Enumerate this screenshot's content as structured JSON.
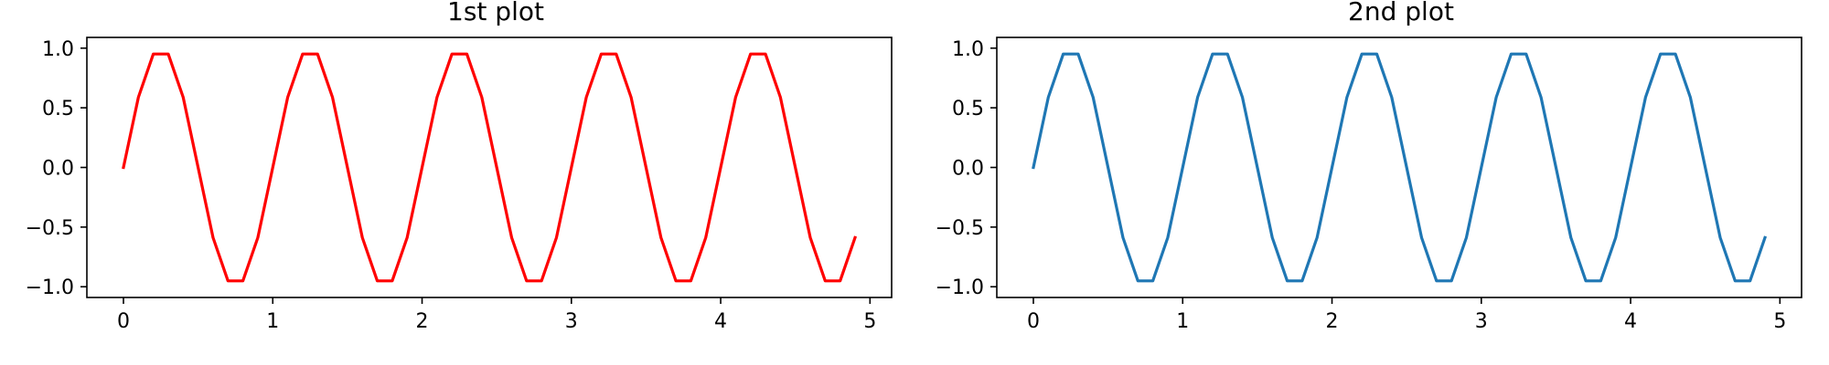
{
  "chart_data": [
    {
      "type": "line",
      "title": "1st plot",
      "xlabel": "",
      "ylabel": "",
      "xlim": [
        -0.245,
        5.145
      ],
      "ylim": [
        -1.09,
        1.09
      ],
      "xticks": [
        0,
        1,
        2,
        3,
        4,
        5
      ],
      "xtick_labels": [
        "0",
        "1",
        "2",
        "3",
        "4",
        "5"
      ],
      "yticks": [
        -1.0,
        -0.5,
        0.0,
        0.5,
        1.0
      ],
      "ytick_labels": [
        "−1.0",
        "−0.5",
        "0.0",
        "0.5",
        "1.0"
      ],
      "grid": false,
      "series": [
        {
          "color": "#ff0000",
          "x": [
            0.0,
            0.1,
            0.2,
            0.3,
            0.4,
            0.5,
            0.6,
            0.7,
            0.8,
            0.9,
            1.0,
            1.1,
            1.2,
            1.3,
            1.4,
            1.5,
            1.6,
            1.7,
            1.8,
            1.9,
            2.0,
            2.1,
            2.2,
            2.3,
            2.4,
            2.5,
            2.6,
            2.7,
            2.8,
            2.9,
            3.0,
            3.1,
            3.2,
            3.3,
            3.4,
            3.5,
            3.6,
            3.7,
            3.8,
            3.9,
            4.0,
            4.1,
            4.2,
            4.3,
            4.4,
            4.5,
            4.6,
            4.7,
            4.8,
            4.9
          ],
          "y": [
            0.0,
            0.588,
            0.951,
            0.951,
            0.588,
            0.0,
            -0.588,
            -0.951,
            -0.951,
            -0.588,
            0.0,
            0.588,
            0.951,
            0.951,
            0.588,
            0.0,
            -0.588,
            -0.951,
            -0.951,
            -0.588,
            0.0,
            0.588,
            0.951,
            0.951,
            0.588,
            0.0,
            -0.588,
            -0.951,
            -0.951,
            -0.588,
            0.0,
            0.588,
            0.951,
            0.951,
            0.588,
            0.0,
            -0.588,
            -0.951,
            -0.951,
            -0.588,
            0.0,
            0.588,
            0.951,
            0.951,
            0.588,
            0.0,
            -0.588,
            -0.951,
            -0.951,
            -0.588
          ]
        }
      ]
    },
    {
      "type": "line",
      "title": "2nd plot",
      "xlabel": "",
      "ylabel": "",
      "xlim": [
        -0.245,
        5.145
      ],
      "ylim": [
        -1.09,
        1.09
      ],
      "xticks": [
        0,
        1,
        2,
        3,
        4,
        5
      ],
      "xtick_labels": [
        "0",
        "1",
        "2",
        "3",
        "4",
        "5"
      ],
      "yticks": [
        -1.0,
        -0.5,
        0.0,
        0.5,
        1.0
      ],
      "ytick_labels": [
        "−1.0",
        "−0.5",
        "0.0",
        "0.5",
        "1.0"
      ],
      "grid": false,
      "series": [
        {
          "color": "#1f77b4",
          "x": [
            0.0,
            0.1,
            0.2,
            0.3,
            0.4,
            0.5,
            0.6,
            0.7,
            0.8,
            0.9,
            1.0,
            1.1,
            1.2,
            1.3,
            1.4,
            1.5,
            1.6,
            1.7,
            1.8,
            1.9,
            2.0,
            2.1,
            2.2,
            2.3,
            2.4,
            2.5,
            2.6,
            2.7,
            2.8,
            2.9,
            3.0,
            3.1,
            3.2,
            3.3,
            3.4,
            3.5,
            3.6,
            3.7,
            3.8,
            3.9,
            4.0,
            4.1,
            4.2,
            4.3,
            4.4,
            4.5,
            4.6,
            4.7,
            4.8,
            4.9
          ],
          "y": [
            0.0,
            0.588,
            0.951,
            0.951,
            0.588,
            0.0,
            -0.588,
            -0.951,
            -0.951,
            -0.588,
            0.0,
            0.588,
            0.951,
            0.951,
            0.588,
            0.0,
            -0.588,
            -0.951,
            -0.951,
            -0.588,
            0.0,
            0.588,
            0.951,
            0.951,
            0.588,
            0.0,
            -0.588,
            -0.951,
            -0.951,
            -0.588,
            0.0,
            0.588,
            0.951,
            0.951,
            0.588,
            0.0,
            -0.588,
            -0.951,
            -0.951,
            -0.588,
            0.0,
            0.588,
            0.951,
            0.951,
            0.588,
            0.0,
            -0.588,
            -0.951,
            -0.951,
            -0.588
          ]
        }
      ]
    }
  ]
}
